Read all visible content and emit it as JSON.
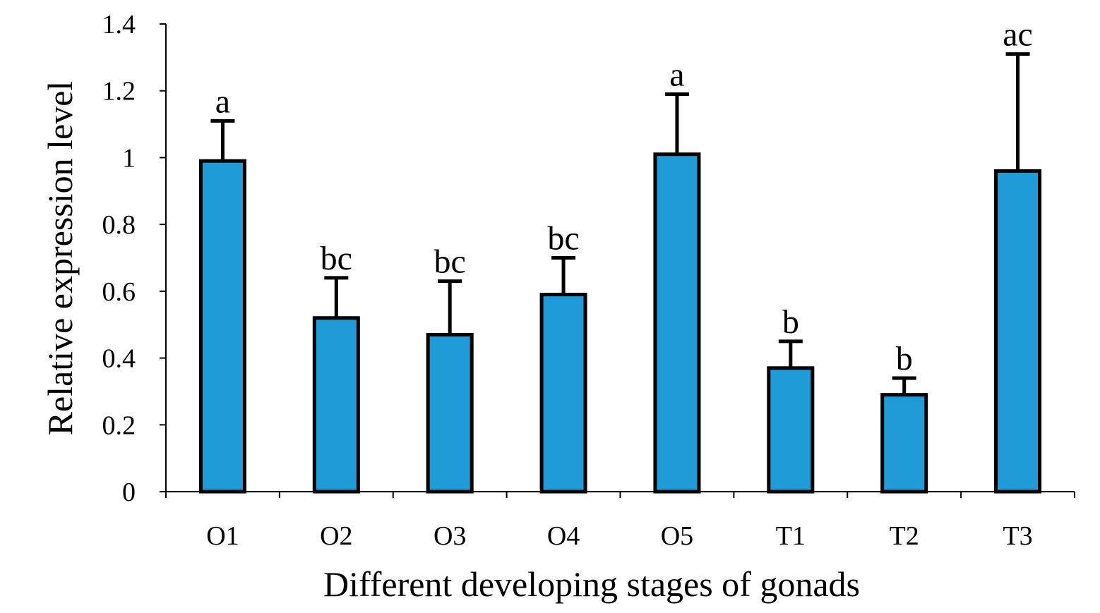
{
  "chart_data": {
    "type": "bar",
    "title": "",
    "xlabel": "Different developing stages of gonads",
    "ylabel": "Relative expression level",
    "ylim": [
      0,
      1.4
    ],
    "yticks": [
      "0",
      "0.2",
      "0.4",
      "0.6",
      "0.8",
      "1",
      "1.2",
      "1.4"
    ],
    "categories": [
      "O1",
      "O2",
      "O3",
      "O4",
      "O5",
      "T1",
      "T2",
      "T3"
    ],
    "values": [
      0.99,
      0.52,
      0.47,
      0.59,
      1.01,
      0.37,
      0.29,
      0.96
    ],
    "errors": [
      0.12,
      0.12,
      0.16,
      0.11,
      0.18,
      0.08,
      0.05,
      0.35
    ],
    "significance": [
      "a",
      "bc",
      "bc",
      "bc",
      "a",
      "b",
      "b",
      "ac"
    ],
    "bar_color": "#1f9bd7",
    "grid": false
  }
}
